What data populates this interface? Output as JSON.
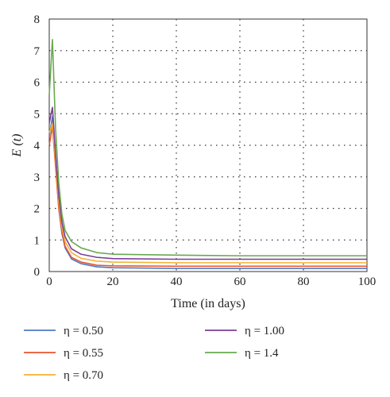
{
  "chart_data": {
    "type": "line",
    "xlabel": "Time (in days)",
    "ylabel": "E (t)",
    "xlim": [
      0,
      100
    ],
    "ylim": [
      0,
      8
    ],
    "xticks": [
      0,
      20,
      40,
      60,
      80,
      100
    ],
    "yticks": [
      0,
      1,
      2,
      3,
      4,
      5,
      6,
      7,
      8
    ],
    "grid": "dotted",
    "legend_position": "below",
    "series": [
      {
        "name": "η = 0.50",
        "color": "#4e79c7",
        "peak": [
          1,
          4.9
        ],
        "values": [
          [
            0,
            4.3
          ],
          [
            1,
            4.9
          ],
          [
            2,
            3.4
          ],
          [
            3,
            2.0
          ],
          [
            4,
            1.2
          ],
          [
            5,
            0.75
          ],
          [
            7,
            0.4
          ],
          [
            10,
            0.25
          ],
          [
            15,
            0.15
          ],
          [
            20,
            0.12
          ],
          [
            40,
            0.1
          ],
          [
            60,
            0.1
          ],
          [
            80,
            0.1
          ],
          [
            100,
            0.1
          ]
        ]
      },
      {
        "name": "η = 0.55",
        "color": "#e8542e",
        "peak": [
          1,
          4.6
        ],
        "values": [
          [
            0,
            4.0
          ],
          [
            1,
            4.6
          ],
          [
            2,
            3.3
          ],
          [
            3,
            2.0
          ],
          [
            4,
            1.25
          ],
          [
            5,
            0.8
          ],
          [
            7,
            0.45
          ],
          [
            10,
            0.3
          ],
          [
            15,
            0.2
          ],
          [
            20,
            0.18
          ],
          [
            40,
            0.17
          ],
          [
            60,
            0.17
          ],
          [
            80,
            0.17
          ],
          [
            100,
            0.17
          ]
        ]
      },
      {
        "name": "η = 0.70",
        "color": "#f2b233",
        "peak": [
          1,
          4.7
        ],
        "values": [
          [
            0,
            4.4
          ],
          [
            1,
            4.7
          ],
          [
            2,
            3.5
          ],
          [
            3,
            2.2
          ],
          [
            4,
            1.4
          ],
          [
            5,
            0.95
          ],
          [
            7,
            0.6
          ],
          [
            10,
            0.42
          ],
          [
            15,
            0.33
          ],
          [
            20,
            0.3
          ],
          [
            40,
            0.28
          ],
          [
            60,
            0.28
          ],
          [
            80,
            0.28
          ],
          [
            100,
            0.28
          ]
        ]
      },
      {
        "name": "η = 1.00",
        "color": "#7a3e99",
        "peak": [
          1,
          5.2
        ],
        "values": [
          [
            0,
            4.7
          ],
          [
            1,
            5.2
          ],
          [
            2,
            3.7
          ],
          [
            3,
            2.4
          ],
          [
            4,
            1.55
          ],
          [
            5,
            1.1
          ],
          [
            7,
            0.72
          ],
          [
            10,
            0.55
          ],
          [
            15,
            0.45
          ],
          [
            20,
            0.41
          ],
          [
            40,
            0.39
          ],
          [
            60,
            0.39
          ],
          [
            80,
            0.39
          ],
          [
            100,
            0.39
          ]
        ]
      },
      {
        "name": "η = 1.4",
        "color": "#6aa84f",
        "peak": [
          1,
          7.35
        ],
        "values": [
          [
            0,
            5.6
          ],
          [
            1,
            7.35
          ],
          [
            2,
            4.5
          ],
          [
            3,
            2.8
          ],
          [
            4,
            1.8
          ],
          [
            5,
            1.3
          ],
          [
            7,
            0.95
          ],
          [
            10,
            0.75
          ],
          [
            15,
            0.6
          ],
          [
            20,
            0.55
          ],
          [
            40,
            0.52
          ],
          [
            60,
            0.5
          ],
          [
            80,
            0.5
          ],
          [
            100,
            0.5
          ]
        ]
      }
    ]
  }
}
